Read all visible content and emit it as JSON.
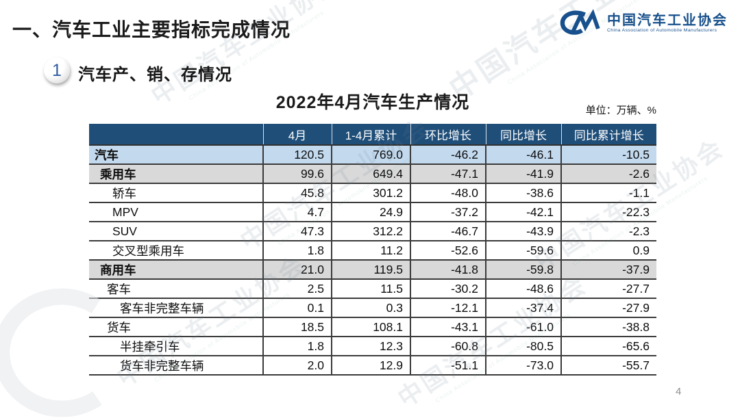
{
  "page": {
    "title": "一、汽车工业主要指标完成情况",
    "page_number": "4"
  },
  "logo": {
    "name_cn": "中国汽车工业协会",
    "name_en": "China Association of Automobile Manufacturers",
    "color": "#17508C"
  },
  "section": {
    "badge": "1",
    "label": "汽车产、销、存情况"
  },
  "table": {
    "title": "2022年4月汽车生产情况",
    "unit_label": "单位：万辆、%",
    "columns": [
      "",
      "4月",
      "1-4月累计",
      "环比增长",
      "同比增长",
      "同比累计增长"
    ],
    "rows": [
      {
        "label": "汽车",
        "level": 0,
        "style": "blue",
        "values": [
          "120.5",
          "769.0",
          "-46.2",
          "-46.1",
          "-10.5"
        ]
      },
      {
        "label": "乘用车",
        "level": 1,
        "style": "gray",
        "values": [
          "99.6",
          "649.4",
          "-47.1",
          "-41.9",
          "-2.6"
        ]
      },
      {
        "label": "轿车",
        "level": 3,
        "style": "white",
        "values": [
          "45.8",
          "301.2",
          "-48.0",
          "-38.6",
          "-1.1"
        ]
      },
      {
        "label": "MPV",
        "level": 3,
        "style": "white",
        "values": [
          "4.7",
          "24.9",
          "-37.2",
          "-42.1",
          "-22.3"
        ]
      },
      {
        "label": "SUV",
        "level": 3,
        "style": "white",
        "values": [
          "47.3",
          "312.2",
          "-46.7",
          "-43.9",
          "-2.3"
        ]
      },
      {
        "label": "交叉型乘用车",
        "level": 3,
        "style": "white",
        "values": [
          "1.8",
          "11.2",
          "-52.6",
          "-59.6",
          "0.9"
        ]
      },
      {
        "label": "商用车",
        "level": 1,
        "style": "gray",
        "values": [
          "21.0",
          "119.5",
          "-41.8",
          "-59.8",
          "-37.9"
        ]
      },
      {
        "label": "客车",
        "level": 2,
        "style": "white",
        "values": [
          "2.5",
          "11.5",
          "-30.2",
          "-48.6",
          "-27.7"
        ]
      },
      {
        "label": "客车非完整车辆",
        "level": 4,
        "style": "white",
        "values": [
          "0.1",
          "0.3",
          "-12.1",
          "-37.4",
          "-27.9"
        ]
      },
      {
        "label": "货车",
        "level": 2,
        "style": "white",
        "values": [
          "18.5",
          "108.1",
          "-43.1",
          "-61.0",
          "-38.8"
        ]
      },
      {
        "label": "半挂牵引车",
        "level": 4,
        "style": "white",
        "values": [
          "1.8",
          "12.3",
          "-60.8",
          "-80.5",
          "-65.6"
        ]
      },
      {
        "label": "货车非完整车辆",
        "level": 4,
        "style": "white",
        "values": [
          "2.0",
          "12.9",
          "-51.1",
          "-73.0",
          "-55.7"
        ]
      }
    ]
  },
  "colors": {
    "header_bg": "#1F4E79",
    "row_blue": "#C3D9EE",
    "row_gray": "#D9D9D9",
    "border": "#3A3A3A",
    "logo_blue": "#17508C"
  },
  "watermark": {
    "text_cn": "中国汽车工业协会",
    "text_en": "China Association of Automobile Manufacturers"
  }
}
